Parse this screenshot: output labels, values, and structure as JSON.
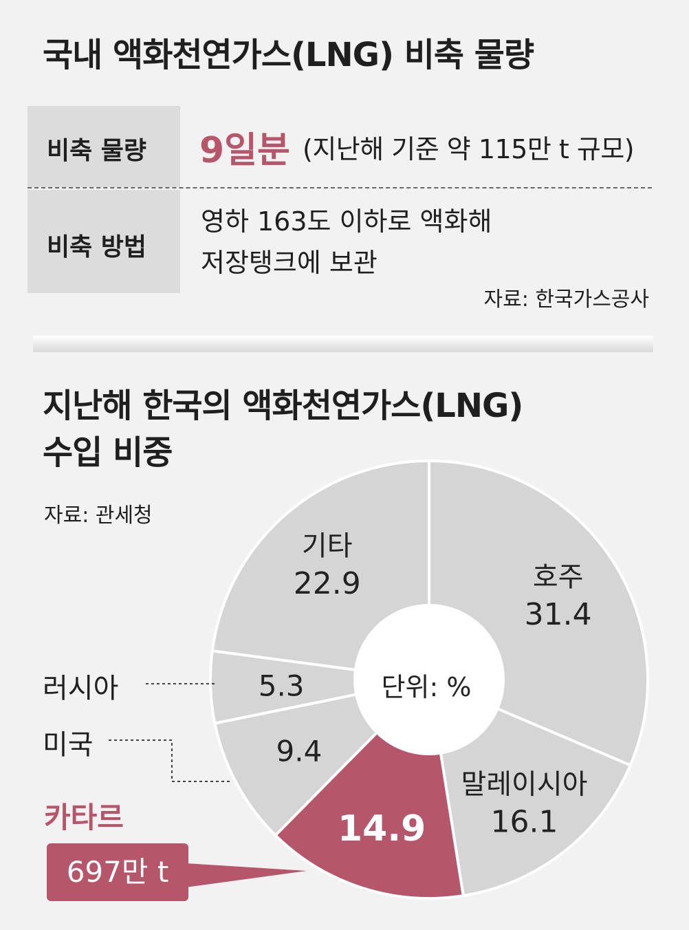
{
  "info": {
    "title": "국내 액화천연가스(LNG) 비축 물량",
    "row1_label": "비축 물량",
    "row1_value": "9일분",
    "row1_detail": "(지난해 기준 약 115만 t 규모)",
    "row2_label": "비축 방법",
    "row2_line1": "영하 163도 이하로 액화해",
    "row2_line2": "저장탱크에 보관",
    "source": "자료: 한국가스공사"
  },
  "chart_data": {
    "type": "pie",
    "title_line1": "지난해 한국의 액화천연가스(LNG)",
    "title_line2": "수입 비중",
    "source": "자료: 관세청",
    "unit_label": "단위: %",
    "slices": [
      {
        "name": "호주",
        "value": 31.4,
        "value_label": "31.4",
        "color": "#d5d5d5"
      },
      {
        "name": "말레이시아",
        "value": 16.1,
        "value_label": "16.1",
        "color": "#d5d5d5"
      },
      {
        "name": "카타르",
        "value": 14.9,
        "value_label": "14.9",
        "color": "#b5566a",
        "highlight": true,
        "annotation": "697만 t"
      },
      {
        "name": "미국",
        "value": 9.4,
        "value_label": "9.4",
        "color": "#d5d5d5"
      },
      {
        "name": "러시아",
        "value": 5.3,
        "value_label": "5.3",
        "color": "#d5d5d5"
      },
      {
        "name": "기타",
        "value": 22.9,
        "value_label": "22.9",
        "color": "#d5d5d5"
      }
    ]
  }
}
